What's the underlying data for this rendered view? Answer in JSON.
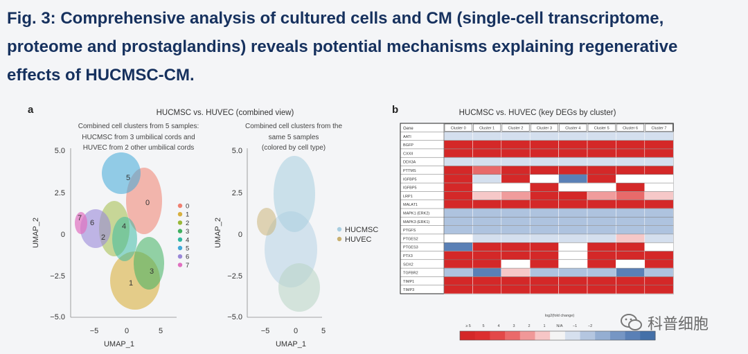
{
  "caption": {
    "line1": "Fig. 3: Comprehensive analysis of cultured cells and CM (single-cell transcriptome,",
    "line2": "proteome and prostaglandins) reveals potential mechanisms explaining regenerative",
    "line3": "effects of HUCMSC-CM."
  },
  "panel_a": {
    "letter": "a",
    "title": "HUCMSC vs. HUVEC (combined view)",
    "left_subtitle": [
      "Combined cell clusters from 5 samples:",
      "HUCMSC from 3 umbilical cords and",
      "HUVEC from 2 other umbilical cords"
    ],
    "right_subtitle": [
      "Combined cell clusters from the",
      "same 5 samples",
      "(colored by cell type)"
    ],
    "xlabel": "UMAP_1",
    "ylabel": "UMAP_2",
    "y_ticks": [
      "5.0",
      "2.5",
      "0",
      "−2.5",
      "−5.0"
    ],
    "x_ticks": [
      "−5",
      "0",
      "5"
    ],
    "clusters": [
      {
        "label": "0",
        "color": "#f08070"
      },
      {
        "label": "1",
        "color": "#d8b040"
      },
      {
        "label": "2",
        "color": "#9ab838"
      },
      {
        "label": "3",
        "color": "#40b060"
      },
      {
        "label": "4",
        "color": "#30b8a0"
      },
      {
        "label": "5",
        "color": "#40a8d8"
      },
      {
        "label": "6",
        "color": "#9a88d8"
      },
      {
        "label": "7",
        "color": "#e070c0"
      }
    ],
    "cell_types": [
      {
        "label": "HUCMSC",
        "color": "#a8cde0"
      },
      {
        "label": "HUVEC",
        "color": "#c8b070"
      }
    ]
  },
  "panel_b": {
    "letter": "b",
    "title": "HUCMSC vs. HUVEC (key DEGs by cluster)",
    "gene_header": "Gene",
    "columns": [
      "Cluster 0",
      "Cluster 1",
      "Cluster 2",
      "Cluster 3",
      "Cluster 4",
      "Cluster 5",
      "Cluster 6",
      "Cluster 7"
    ],
    "genes": [
      "AATI",
      "BGFP",
      "CXXII",
      "DDX3A",
      "PTTMS",
      "IGFBP5",
      "IGFBP5",
      "LRP1",
      "MALAT1",
      "MAPK1 (ERK2)",
      "MAPK3 (ERK1)",
      "PTGFS",
      "PTGES2",
      "PTGES3",
      "PTX3",
      "SOX2",
      "TGFBR2",
      "TIMP1",
      "TIMP3"
    ],
    "cells": [
      [
        -0.5,
        -0.5,
        -0.5,
        -0.5,
        -0.5,
        -0.5,
        -0.5,
        -0.5
      ],
      [
        5,
        5,
        5,
        5,
        5,
        5,
        5,
        5
      ],
      [
        5,
        5,
        5,
        5,
        5,
        5,
        5,
        5
      ],
      [
        -0.5,
        -0.5,
        -0.5,
        -0.5,
        -0.5,
        -0.5,
        -0.5,
        -0.5
      ],
      [
        5,
        3,
        5,
        5,
        5,
        5,
        5,
        5
      ],
      [
        5,
        -0.5,
        5,
        0,
        -3,
        5,
        0,
        0
      ],
      [
        5,
        0,
        0,
        5,
        0,
        0,
        5,
        0
      ],
      [
        5,
        1,
        2,
        5,
        5,
        2,
        3,
        1
      ],
      [
        5,
        5,
        5,
        5,
        5,
        5,
        5,
        5
      ],
      [
        -1,
        -1,
        -1,
        -1,
        -1,
        -1,
        -1,
        -1
      ],
      [
        -1,
        -1,
        -1,
        -1,
        -1,
        -1,
        -1,
        -1
      ],
      [
        -1,
        -1,
        -1,
        -1,
        -1,
        -1,
        -1,
        -1
      ],
      [
        0,
        -0.5,
        -0.5,
        -0.5,
        -0.5,
        -0.5,
        1,
        -0.5
      ],
      [
        -3,
        5,
        5,
        5,
        0,
        5,
        5,
        0
      ],
      [
        5,
        5,
        5,
        5,
        0,
        5,
        5,
        5
      ],
      [
        5,
        5,
        0,
        5,
        0,
        5,
        0,
        5
      ],
      [
        -1,
        -3,
        1,
        -1,
        -1,
        -1,
        -3,
        -1
      ],
      [
        5,
        5,
        5,
        5,
        5,
        5,
        5,
        5
      ],
      [
        5,
        5,
        5,
        5,
        5,
        5,
        5,
        5
      ]
    ],
    "scale_title": "log2(fold change)",
    "scale_labels": [
      "≥ 5",
      "5",
      "4",
      "3",
      "2",
      "1",
      "N/A",
      "−1",
      "−2"
    ],
    "scale_colors": [
      "#d42828",
      "#dc2e2e",
      "#e34848",
      "#ea6a6a",
      "#f09898",
      "#f7c6c6",
      "#f4f4f4",
      "#d6e0ee",
      "#b4c6e0",
      "#94aed2",
      "#7696c4",
      "#5a80b6",
      "#4470a8"
    ]
  },
  "watermark": {
    "text": "科普细胞",
    "logo_icon": "wechat-bubble-icon"
  }
}
